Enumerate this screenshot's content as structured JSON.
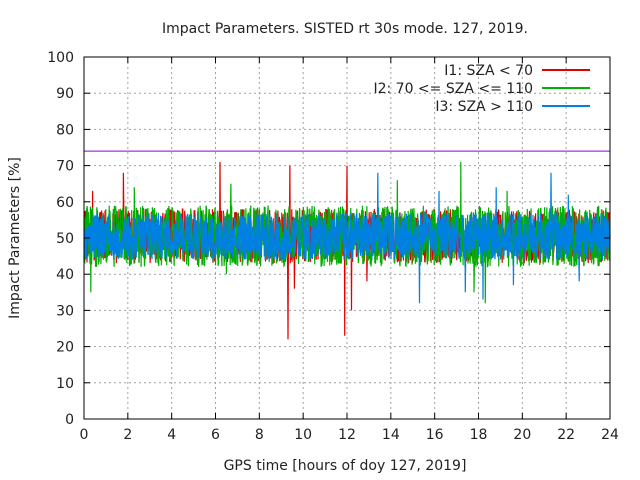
{
  "chart_data": {
    "type": "line",
    "title": "Impact Parameters. SISTED rt 30s mode. 127, 2019.",
    "xlabel": "GPS time [hours of doy 127, 2019]",
    "ylabel": "Impact Parameters [%]",
    "xlim": [
      0,
      24
    ],
    "ylim": [
      0,
      100
    ],
    "x_ticks": [
      0,
      2,
      4,
      6,
      8,
      10,
      12,
      14,
      16,
      18,
      20,
      22,
      24
    ],
    "y_ticks": [
      0,
      10,
      20,
      30,
      40,
      50,
      60,
      70,
      80,
      90,
      100
    ],
    "grid": true,
    "legend_position": "top-right",
    "threshold": {
      "value": 74,
      "color": "#9400d3"
    },
    "series": [
      {
        "name": "I1: SZA < 70",
        "color": "#e00000",
        "mean": 50,
        "typical_range": [
          43,
          58
        ],
        "peaks": [
          {
            "x": 6.2,
            "y": 71
          },
          {
            "x": 9.4,
            "y": 70
          },
          {
            "x": 12.0,
            "y": 70
          },
          {
            "x": 1.8,
            "y": 68
          },
          {
            "x": 0.4,
            "y": 63
          }
        ],
        "dips": [
          {
            "x": 9.3,
            "y": 22
          },
          {
            "x": 11.9,
            "y": 23
          },
          {
            "x": 12.2,
            "y": 30
          },
          {
            "x": 9.6,
            "y": 36
          },
          {
            "x": 12.9,
            "y": 38
          }
        ]
      },
      {
        "name": "I2: 70 <= SZA <= 110",
        "color": "#00b000",
        "mean": 50,
        "typical_range": [
          42,
          59
        ],
        "peaks": [
          {
            "x": 17.2,
            "y": 71
          },
          {
            "x": 14.3,
            "y": 66
          },
          {
            "x": 6.7,
            "y": 65
          },
          {
            "x": 2.3,
            "y": 64
          },
          {
            "x": 19.3,
            "y": 63
          }
        ],
        "dips": [
          {
            "x": 18.3,
            "y": 32
          },
          {
            "x": 0.3,
            "y": 35
          },
          {
            "x": 17.8,
            "y": 35
          },
          {
            "x": 6.5,
            "y": 40
          }
        ]
      },
      {
        "name": "I3: SZA > 110",
        "color": "#0080e0",
        "mean": 50,
        "typical_range": [
          44,
          57
        ],
        "peaks": [
          {
            "x": 13.4,
            "y": 68
          },
          {
            "x": 21.3,
            "y": 68
          },
          {
            "x": 18.8,
            "y": 64
          },
          {
            "x": 16.2,
            "y": 63
          },
          {
            "x": 22.1,
            "y": 62
          }
        ],
        "dips": [
          {
            "x": 15.3,
            "y": 32
          },
          {
            "x": 18.2,
            "y": 33
          },
          {
            "x": 17.4,
            "y": 35
          },
          {
            "x": 19.6,
            "y": 37
          },
          {
            "x": 22.6,
            "y": 38
          }
        ]
      }
    ]
  }
}
